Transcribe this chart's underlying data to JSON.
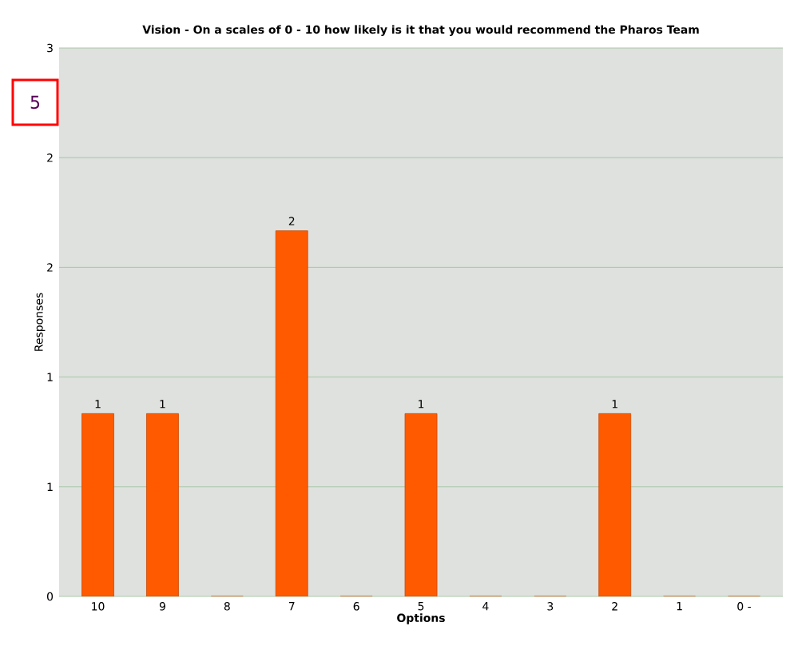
{
  "chart_data": {
    "type": "bar",
    "title": "Vision - On a scales of 0 - 10 how likely is it that you would recommend the Pharos Team",
    "xlabel": "Options",
    "ylabel": "Responses",
    "categories": [
      "10",
      "9",
      "8",
      "7",
      "6",
      "5",
      "4",
      "3",
      "2",
      "1",
      "0 -"
    ],
    "values": [
      1,
      1,
      0,
      2,
      0,
      1,
      0,
      0,
      1,
      0,
      0
    ],
    "value_labels": [
      "1",
      "1",
      null,
      "2",
      null,
      "1",
      null,
      null,
      "1",
      null,
      null
    ],
    "color": "#ff5a00",
    "ylim": [
      0,
      3
    ],
    "yticks": [
      0,
      {
        "value": 0.6,
        "label": "1"
      },
      {
        "value": 1.2,
        "label": "1"
      },
      {
        "value": 1.8,
        "label": "2"
      },
      {
        "value": 2.4,
        "label": "2"
      },
      3
    ],
    "grid": "y",
    "annotations": [
      "5"
    ]
  }
}
